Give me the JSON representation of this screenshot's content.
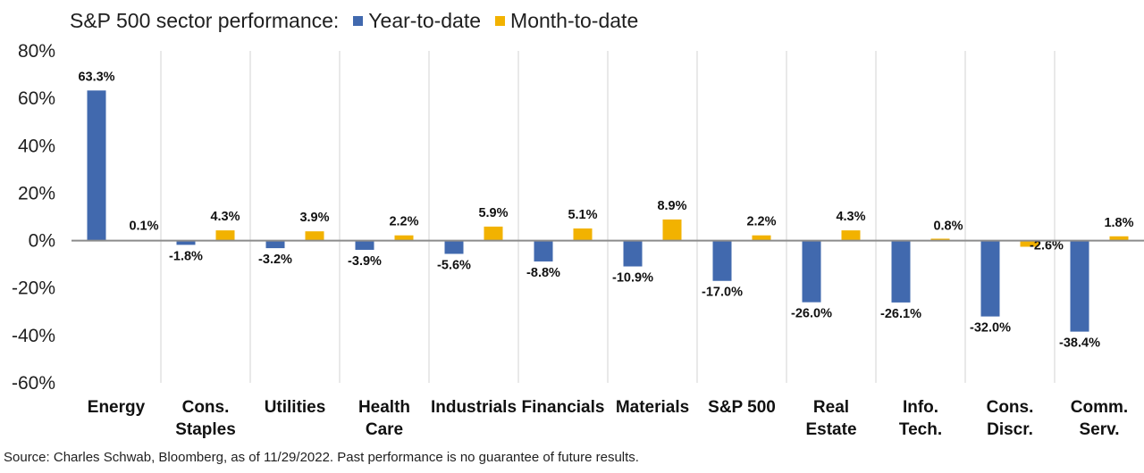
{
  "chart_data": {
    "type": "bar",
    "title": "S&P 500 sector performance:",
    "categories": [
      [
        "Energy"
      ],
      [
        "Cons.",
        "Staples"
      ],
      [
        "Utilities"
      ],
      [
        "Health",
        "Care"
      ],
      [
        "Industrials"
      ],
      [
        "Financials"
      ],
      [
        "Materials"
      ],
      [
        "S&P 500"
      ],
      [
        "Real",
        "Estate"
      ],
      [
        "Info.",
        "Tech."
      ],
      [
        "Cons.",
        "Discr."
      ],
      [
        "Comm.",
        "Serv."
      ]
    ],
    "series": [
      {
        "name": "Year-to-date",
        "color": "#4169ae",
        "values": [
          63.3,
          -1.8,
          -3.2,
          -3.9,
          -5.6,
          -8.8,
          -10.9,
          -17.0,
          -26.0,
          -26.1,
          -32.0,
          -38.4
        ],
        "labels": [
          "63.3%",
          "-1.8%",
          "-3.2%",
          "-3.9%",
          "-5.6%",
          "-8.8%",
          "-10.9%",
          "-17.0%",
          "-26.0%",
          "-26.1%",
          "-32.0%",
          "-38.4%"
        ]
      },
      {
        "name": "Month-to-date",
        "color": "#f2b200",
        "values": [
          0.1,
          4.3,
          3.9,
          2.2,
          5.9,
          5.1,
          8.9,
          2.2,
          4.3,
          0.8,
          -2.6,
          1.8
        ],
        "labels": [
          "0.1%",
          "4.3%",
          "3.9%",
          "2.2%",
          "5.9%",
          "5.1%",
          "8.9%",
          "2.2%",
          "4.3%",
          "0.8%",
          "-2.6%",
          "1.8%"
        ]
      }
    ],
    "ylim": [
      -60,
      80
    ],
    "yticks": [
      -60,
      -40,
      -20,
      0,
      20,
      40,
      60,
      80
    ],
    "ytick_labels": [
      "-60%",
      "-40%",
      "-20%",
      "0%",
      "20%",
      "40%",
      "60%",
      "80%"
    ],
    "xlabel": "",
    "ylabel": "",
    "grid": "vertical category separators",
    "legend": "top, beside title"
  },
  "source": "Source: Charles Schwab, Bloomberg, as of 11/29/2022.  Past performance is no guarantee of future results."
}
